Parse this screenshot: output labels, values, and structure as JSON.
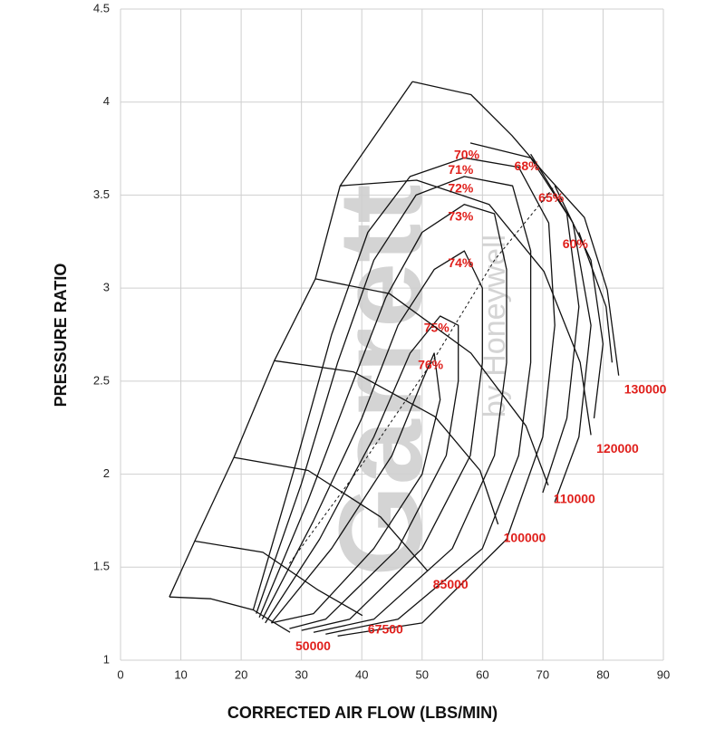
{
  "chart_data": {
    "type": "compressor-map",
    "xlabel": "CORRECTED AIR FLOW (LBS/MIN)",
    "ylabel": "PRESSURE RATIO",
    "xlim": [
      0,
      90
    ],
    "ylim": [
      1,
      4.5
    ],
    "xticks": [
      0,
      10,
      20,
      30,
      40,
      50,
      60,
      70,
      80,
      90
    ],
    "yticks": [
      1,
      1.5,
      2,
      2.5,
      3,
      3.5,
      4,
      4.5
    ],
    "grid": true,
    "line_color": "#111111",
    "label_color": "#e0201c",
    "watermark": [
      "Garrett",
      "by Honeywell"
    ],
    "surge_line": {
      "x": [
        8.1,
        12.3,
        18.8,
        25.5,
        32.3,
        36.4,
        48.4
      ],
      "y": [
        1.34,
        1.64,
        2.09,
        2.61,
        3.05,
        3.55,
        4.11
      ]
    },
    "peak_line": {
      "x": [
        28,
        40,
        52,
        62,
        72
      ],
      "y": [
        1.52,
        2.05,
        2.62,
        3.15,
        3.55
      ]
    },
    "speed_lines": [
      {
        "name": "50000",
        "x": [
          8.1,
          15,
          22,
          28.1
        ],
        "y": [
          1.34,
          1.33,
          1.27,
          1.15
        ]
      },
      {
        "name": "67500",
        "x": [
          12.3,
          23.6,
          32.6,
          40.1
        ],
        "y": [
          1.64,
          1.58,
          1.38,
          1.24
        ]
      },
      {
        "name": "85000",
        "x": [
          18.8,
          31.1,
          43.1,
          50.9
        ],
        "y": [
          2.09,
          2.02,
          1.77,
          1.48
        ]
      },
      {
        "name": "100000",
        "x": [
          25.5,
          38.6,
          52.1,
          59.6,
          62.6
        ],
        "y": [
          2.61,
          2.55,
          2.31,
          2.02,
          1.73
        ]
      },
      {
        "name": "110000",
        "x": [
          32.3,
          44.6,
          58.1,
          67.2,
          70.9
        ],
        "y": [
          3.05,
          2.97,
          2.65,
          2.26,
          1.94
        ]
      },
      {
        "name": "120000",
        "x": [
          36.4,
          49.1,
          61.1,
          70.2,
          76.2,
          78.0
        ],
        "y": [
          3.55,
          3.58,
          3.45,
          3.09,
          2.6,
          2.21
        ]
      },
      {
        "name": "130000",
        "x": [
          48.4,
          58.1,
          64.9,
          70.2,
          76.9,
          80.7,
          82.6
        ],
        "y": [
          4.11,
          4.04,
          3.82,
          3.62,
          3.38,
          2.99,
          2.53
        ]
      }
    ],
    "efficiency": [
      {
        "name": "76%",
        "x": [
          25,
          35,
          45,
          50,
          52,
          53,
          50,
          42,
          32,
          25
        ],
        "y": [
          1.2,
          1.6,
          2.1,
          2.5,
          2.65,
          2.4,
          2.0,
          1.6,
          1.25,
          1.2
        ]
      },
      {
        "name": "75%",
        "x": [
          24,
          33,
          42,
          48,
          53,
          56,
          56,
          54,
          46,
          34,
          28
        ],
        "y": [
          1.2,
          1.65,
          2.2,
          2.65,
          2.85,
          2.8,
          2.5,
          2.1,
          1.6,
          1.22,
          1.17
        ]
      },
      {
        "name": "74%",
        "x": [
          23.5,
          32,
          40,
          46,
          52,
          57,
          60,
          60,
          58,
          50,
          38,
          30
        ],
        "y": [
          1.22,
          1.75,
          2.3,
          2.8,
          3.1,
          3.2,
          3.0,
          2.6,
          2.1,
          1.6,
          1.22,
          1.16
        ]
      },
      {
        "name": "73%",
        "x": [
          23,
          31,
          38,
          44,
          50,
          57,
          62,
          64,
          64,
          62,
          55,
          42,
          32
        ],
        "y": [
          1.23,
          1.85,
          2.45,
          2.95,
          3.3,
          3.45,
          3.4,
          3.1,
          2.6,
          2.1,
          1.6,
          1.22,
          1.15
        ]
      },
      {
        "name": "72%",
        "x": [
          22.5,
          30,
          36,
          42,
          49,
          57,
          65,
          68,
          68,
          66,
          60,
          46,
          34
        ],
        "y": [
          1.25,
          1.95,
          2.6,
          3.15,
          3.5,
          3.6,
          3.55,
          3.2,
          2.6,
          2.1,
          1.6,
          1.22,
          1.14
        ]
      },
      {
        "name": "71%",
        "x": [
          22,
          29,
          35,
          41,
          48,
          57,
          66,
          71,
          72,
          70,
          64,
          50,
          36
        ],
        "y": [
          1.27,
          2.05,
          2.75,
          3.3,
          3.6,
          3.7,
          3.65,
          3.35,
          2.8,
          2.2,
          1.65,
          1.2,
          1.13
        ]
      },
      {
        "name": "70%",
        "x": [
          58,
          68,
          74,
          76,
          74,
          70
        ],
        "y": [
          3.78,
          3.7,
          3.4,
          2.9,
          2.3,
          1.9
        ]
      },
      {
        "name": "68%",
        "x": [
          68,
          75,
          78,
          76,
          72
        ],
        "y": [
          3.72,
          3.35,
          2.8,
          2.2,
          1.85
        ]
      },
      {
        "name": "65%",
        "x": [
          72,
          78,
          80,
          78.5
        ],
        "y": [
          3.55,
          3.15,
          2.7,
          2.3
        ]
      },
      {
        "name": "60%",
        "x": [
          76,
          80.5,
          81.5
        ],
        "y": [
          3.3,
          2.9,
          2.6
        ]
      }
    ]
  }
}
